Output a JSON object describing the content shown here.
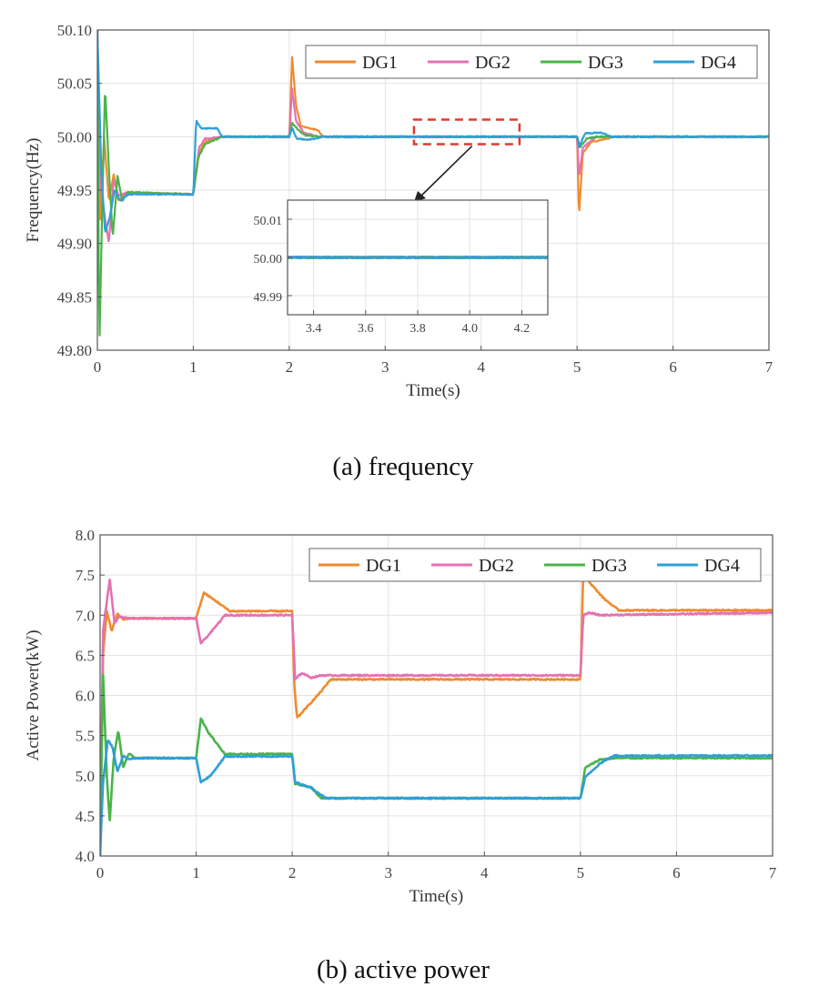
{
  "chart_data": [
    {
      "id": "frequency",
      "type": "line",
      "caption": "(a) frequency",
      "xlabel": "Time(s)",
      "ylabel": "Frequency(Hz)",
      "xlim": [
        0,
        7
      ],
      "ylim": [
        49.8,
        50.1
      ],
      "xticks": [
        "0",
        "1",
        "2",
        "3",
        "4",
        "5",
        "6",
        "7"
      ],
      "yticks": [
        "49.80",
        "49.85",
        "49.90",
        "49.95",
        "50.00",
        "50.05",
        "50.10"
      ],
      "legend_position": "top-right",
      "colors": {
        "DG1": "#f08a2e",
        "DG2": "#e472b0",
        "DG3": "#4ab34a",
        "DG4": "#2f9fd8",
        "annotation": "#e03a2f"
      },
      "series": [
        {
          "name": "DG1",
          "points": [
            [
              0,
              50.1
            ],
            [
              0.03,
              49.92
            ],
            [
              0.07,
              50.0
            ],
            [
              0.12,
              49.94
            ],
            [
              0.17,
              49.965
            ],
            [
              0.22,
              49.94
            ],
            [
              0.3,
              49.948
            ],
            [
              1.0,
              49.946
            ],
            [
              1.06,
              49.985
            ],
            [
              1.12,
              49.995
            ],
            [
              1.3,
              50.0
            ],
            [
              2.0,
              50.0
            ],
            [
              2.03,
              50.075
            ],
            [
              2.07,
              50.03
            ],
            [
              2.12,
              50.01
            ],
            [
              2.3,
              50.006
            ],
            [
              2.35,
              50.0
            ],
            [
              5.0,
              50.0
            ],
            [
              5.02,
              49.925
            ],
            [
              5.06,
              49.985
            ],
            [
              5.15,
              49.995
            ],
            [
              5.3,
              49.998
            ],
            [
              5.4,
              50.0
            ],
            [
              7.0,
              50.0
            ]
          ]
        },
        {
          "name": "DG2",
          "points": [
            [
              0,
              50.1
            ],
            [
              0.03,
              49.96
            ],
            [
              0.07,
              49.93
            ],
            [
              0.12,
              49.9
            ],
            [
              0.17,
              49.96
            ],
            [
              0.22,
              49.945
            ],
            [
              0.3,
              49.947
            ],
            [
              1.0,
              49.946
            ],
            [
              1.06,
              49.99
            ],
            [
              1.12,
              49.998
            ],
            [
              1.3,
              50.0
            ],
            [
              2.0,
              50.0
            ],
            [
              2.03,
              50.045
            ],
            [
              2.07,
              50.015
            ],
            [
              2.15,
              50.004
            ],
            [
              2.3,
              50.0
            ],
            [
              5.0,
              50.0
            ],
            [
              5.02,
              49.962
            ],
            [
              5.06,
              49.99
            ],
            [
              5.2,
              50.0
            ],
            [
              7.0,
              50.0
            ]
          ]
        },
        {
          "name": "DG3",
          "points": [
            [
              0,
              50.1
            ],
            [
              0.02,
              49.8
            ],
            [
              0.05,
              49.93
            ],
            [
              0.08,
              50.047
            ],
            [
              0.12,
              49.97
            ],
            [
              0.16,
              49.905
            ],
            [
              0.21,
              49.963
            ],
            [
              0.26,
              49.94
            ],
            [
              0.32,
              49.948
            ],
            [
              1.0,
              49.946
            ],
            [
              1.05,
              49.98
            ],
            [
              1.12,
              49.993
            ],
            [
              1.3,
              50.0
            ],
            [
              2.0,
              50.0
            ],
            [
              2.03,
              50.013
            ],
            [
              2.08,
              50.008
            ],
            [
              2.15,
              50.002
            ],
            [
              2.3,
              50.0
            ],
            [
              5.0,
              50.0
            ],
            [
              5.03,
              49.99
            ],
            [
              5.1,
              49.998
            ],
            [
              5.2,
              50.0
            ],
            [
              7.0,
              50.0
            ]
          ]
        },
        {
          "name": "DG4",
          "points": [
            [
              0,
              50.1
            ],
            [
              0.04,
              49.97
            ],
            [
              0.08,
              49.91
            ],
            [
              0.13,
              49.925
            ],
            [
              0.18,
              49.95
            ],
            [
              0.24,
              49.94
            ],
            [
              0.32,
              49.946
            ],
            [
              1.0,
              49.946
            ],
            [
              1.03,
              50.015
            ],
            [
              1.08,
              50.008
            ],
            [
              1.25,
              50.008
            ],
            [
              1.3,
              50.0
            ],
            [
              2.0,
              50.0
            ],
            [
              2.03,
              50.008
            ],
            [
              2.08,
              49.998
            ],
            [
              2.2,
              49.997
            ],
            [
              2.35,
              50.0
            ],
            [
              5.0,
              50.0
            ],
            [
              5.02,
              49.99
            ],
            [
              5.08,
              50.003
            ],
            [
              5.25,
              50.004
            ],
            [
              5.35,
              50.0
            ],
            [
              7.0,
              50.0
            ]
          ]
        }
      ],
      "inset": {
        "xlim": [
          3.3,
          4.3
        ],
        "ylim": [
          49.985,
          50.015
        ],
        "xticks": [
          "3.4",
          "3.6",
          "3.8",
          "4.0",
          "4.2"
        ],
        "yticks": [
          "49.99",
          "50.00",
          "50.01"
        ],
        "zoom_x": [
          3.3,
          4.4
        ],
        "zoom_y": [
          49.993,
          50.016
        ]
      }
    },
    {
      "id": "active_power",
      "type": "line",
      "caption": "(b) active power",
      "xlabel": "Time(s)",
      "ylabel": "Active Power(kW)",
      "xlim": [
        0,
        7
      ],
      "ylim": [
        4.0,
        8.0
      ],
      "xticks": [
        "0",
        "1",
        "2",
        "3",
        "4",
        "5",
        "6",
        "7"
      ],
      "yticks": [
        "4.0",
        "4.5",
        "5.0",
        "5.5",
        "6.0",
        "6.5",
        "7.0",
        "7.5",
        "8.0"
      ],
      "legend_position": "top-right",
      "series": [
        {
          "name": "DG1",
          "points": [
            [
              0,
              4.0
            ],
            [
              0.03,
              6.5
            ],
            [
              0.07,
              7.05
            ],
            [
              0.12,
              6.8
            ],
            [
              0.18,
              7.02
            ],
            [
              0.24,
              6.95
            ],
            [
              0.3,
              6.96
            ],
            [
              1.0,
              6.96
            ],
            [
              1.08,
              7.28
            ],
            [
              1.2,
              7.18
            ],
            [
              1.35,
              7.05
            ],
            [
              2.0,
              7.05
            ],
            [
              2.02,
              6.15
            ],
            [
              2.05,
              5.72
            ],
            [
              2.15,
              5.85
            ],
            [
              2.3,
              6.05
            ],
            [
              2.4,
              6.2
            ],
            [
              5.0,
              6.2
            ],
            [
              5.03,
              7.55
            ],
            [
              5.1,
              7.4
            ],
            [
              5.25,
              7.2
            ],
            [
              5.4,
              7.06
            ],
            [
              7.0,
              7.06
            ]
          ]
        },
        {
          "name": "DG2",
          "points": [
            [
              0,
              4.0
            ],
            [
              0.03,
              6.8
            ],
            [
              0.1,
              7.45
            ],
            [
              0.15,
              6.9
            ],
            [
              0.2,
              6.98
            ],
            [
              0.3,
              6.96
            ],
            [
              1.0,
              6.96
            ],
            [
              1.05,
              6.65
            ],
            [
              1.15,
              6.78
            ],
            [
              1.3,
              7.0
            ],
            [
              2.0,
              7.0
            ],
            [
              2.03,
              6.2
            ],
            [
              2.1,
              6.28
            ],
            [
              2.2,
              6.22
            ],
            [
              2.3,
              6.25
            ],
            [
              5.0,
              6.25
            ],
            [
              5.03,
              7.0
            ],
            [
              5.1,
              7.03
            ],
            [
              5.2,
              7.0
            ],
            [
              7.0,
              7.03
            ]
          ]
        },
        {
          "name": "DG3",
          "points": [
            [
              0,
              4.0
            ],
            [
              0.03,
              6.3
            ],
            [
              0.07,
              5.0
            ],
            [
              0.1,
              4.42
            ],
            [
              0.14,
              5.2
            ],
            [
              0.19,
              5.57
            ],
            [
              0.24,
              5.1
            ],
            [
              0.3,
              5.28
            ],
            [
              0.36,
              5.22
            ],
            [
              1.0,
              5.22
            ],
            [
              1.05,
              5.72
            ],
            [
              1.12,
              5.55
            ],
            [
              1.3,
              5.27
            ],
            [
              2.0,
              5.27
            ],
            [
              2.03,
              4.9
            ],
            [
              2.2,
              4.85
            ],
            [
              2.3,
              4.72
            ],
            [
              5.0,
              4.72
            ],
            [
              5.05,
              5.1
            ],
            [
              5.2,
              5.2
            ],
            [
              5.35,
              5.22
            ],
            [
              7.0,
              5.22
            ]
          ]
        },
        {
          "name": "DG4",
          "points": [
            [
              0,
              4.0
            ],
            [
              0.03,
              4.9
            ],
            [
              0.08,
              5.45
            ],
            [
              0.13,
              5.35
            ],
            [
              0.18,
              5.05
            ],
            [
              0.24,
              5.25
            ],
            [
              0.3,
              5.2
            ],
            [
              0.36,
              5.22
            ],
            [
              1.0,
              5.22
            ],
            [
              1.05,
              4.92
            ],
            [
              1.15,
              5.0
            ],
            [
              1.3,
              5.24
            ],
            [
              2.0,
              5.24
            ],
            [
              2.03,
              4.92
            ],
            [
              2.2,
              4.85
            ],
            [
              2.35,
              4.72
            ],
            [
              5.0,
              4.72
            ],
            [
              5.05,
              4.98
            ],
            [
              5.2,
              5.15
            ],
            [
              5.35,
              5.25
            ],
            [
              7.0,
              5.25
            ]
          ]
        }
      ]
    }
  ]
}
